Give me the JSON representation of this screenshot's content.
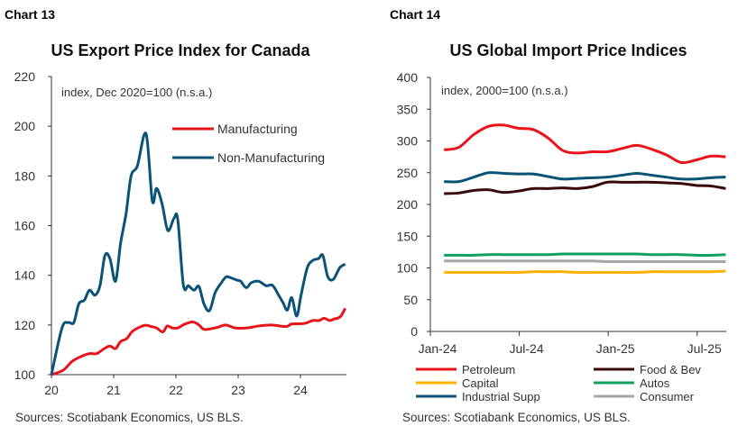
{
  "chart_data": [
    {
      "type": "line",
      "label": "Chart 13",
      "title": "US Export Price Index for Canada",
      "note": "index, Dec 2020=100 (n.s.a.)",
      "source": "Sources: Scotiabank Economics, US BLS.",
      "ylim": [
        100,
        220
      ],
      "yticks": [
        100,
        120,
        140,
        160,
        180,
        200,
        220
      ],
      "xlim": [
        20,
        24.8
      ],
      "xticks": [
        "20",
        "21",
        "22",
        "23",
        "24"
      ],
      "legend": "top-right",
      "grid": false,
      "series": [
        {
          "name": "Manufacturing",
          "color": "#e8141c",
          "x": [
            20,
            20.19,
            20.34,
            20.53,
            20.63,
            20.73,
            20.85,
            20.94,
            21.03,
            21.11,
            21.21,
            21.31,
            21.49,
            21.6,
            21.69,
            21.79,
            21.86,
            21.94,
            22.03,
            22.13,
            22.27,
            22.37,
            22.46,
            22.66,
            22.8,
            22.95,
            23.14,
            23.33,
            23.53,
            23.77,
            23.86,
            24.06,
            24.2,
            24.3,
            24.38,
            24.47,
            24.54,
            24.64,
            24.72
          ],
          "y": [
            100,
            101.8,
            105.5,
            107.9,
            108.5,
            108.5,
            110.5,
            111.5,
            110.5,
            113.3,
            114.5,
            117.6,
            119.8,
            119.4,
            118.8,
            117.2,
            119.6,
            118.8,
            118.8,
            120.2,
            121.2,
            120,
            118.2,
            119,
            120,
            118.8,
            118.8,
            119.6,
            120,
            119.4,
            120.4,
            120.6,
            121.8,
            121.8,
            122.7,
            121.8,
            122.4,
            123.3,
            126.7
          ]
        },
        {
          "name": "Non-Manufacturing",
          "color": "#0b5277",
          "x": [
            20,
            20.17,
            20.27,
            20.36,
            20.44,
            20.53,
            20.61,
            20.7,
            20.78,
            20.86,
            20.94,
            21.03,
            21.11,
            21.2,
            21.28,
            21.38,
            21.52,
            21.62,
            21.69,
            21.78,
            21.87,
            21.97,
            22.03,
            22.12,
            22.2,
            22.29,
            22.37,
            22.45,
            22.54,
            22.63,
            22.73,
            22.81,
            22.9,
            22.99,
            23.04,
            23.13,
            23.21,
            23.33,
            23.45,
            23.55,
            23.65,
            23.72,
            23.79,
            23.86,
            23.94,
            24.01,
            24.11,
            24.2,
            24.29,
            24.36,
            24.44,
            24.53,
            24.63,
            24.72
          ],
          "y": [
            100,
            118.8,
            121,
            121,
            128.5,
            130,
            134,
            132,
            135.8,
            148,
            146.7,
            137.6,
            152.7,
            165,
            180,
            184,
            197,
            170,
            175,
            168.5,
            158,
            163,
            162.4,
            136,
            135.8,
            134,
            135.5,
            128.5,
            125.8,
            133,
            137,
            139.4,
            138.8,
            138,
            137.6,
            135,
            137,
            137.6,
            135.8,
            136,
            132,
            129,
            126,
            131,
            123.6,
            132,
            143,
            146,
            146.7,
            148,
            139.4,
            138.4,
            143,
            144.5
          ]
        }
      ]
    },
    {
      "type": "line",
      "label": "Chart 14",
      "title": "US Global Import Price Indices",
      "note": "index, 2000=100 (n.s.a.)",
      "source": "Sources: Scotiabank Economics, US BLS.",
      "ylim": [
        0,
        400
      ],
      "yticks": [
        0,
        50,
        100,
        150,
        200,
        250,
        300,
        350,
        400
      ],
      "xticks": [
        "Jan-24",
        "Jul-24",
        "Jan-25",
        "Jul-25"
      ],
      "legend": "bottom",
      "x": [
        "2024-01",
        "2024-02",
        "2024-03",
        "2024-04",
        "2024-05",
        "2024-06",
        "2024-07",
        "2024-08",
        "2024-09",
        "2024-10",
        "2024-11",
        "2024-12",
        "2025-01",
        "2025-02",
        "2025-03",
        "2025-04",
        "2025-05",
        "2025-06",
        "2025-07",
        "2025-08"
      ],
      "series": [
        {
          "name": "Petroleum",
          "color": "#e8141c",
          "values": [
            286,
            290,
            310,
            323,
            325,
            320,
            318,
            305,
            285,
            281,
            283,
            283,
            288,
            293,
            287,
            278,
            266,
            270,
            276,
            275
          ]
        },
        {
          "name": "Food & Bev",
          "color": "#3a0a0a",
          "values": [
            217,
            218,
            222,
            223,
            219,
            221,
            225,
            225,
            226,
            225,
            228,
            235,
            235,
            235,
            235,
            234,
            233,
            230,
            229,
            225
          ]
        },
        {
          "name": "Capital",
          "color": "#ffb000",
          "values": [
            93,
            93,
            93,
            93,
            93,
            93,
            94,
            94,
            94,
            93,
            93,
            93,
            93,
            93,
            94,
            94,
            94,
            94,
            94,
            95
          ]
        },
        {
          "name": "Autos",
          "color": "#10a060",
          "values": [
            120,
            120,
            120,
            121,
            121,
            121,
            121,
            121,
            122,
            122,
            122,
            122,
            122,
            122,
            121,
            121,
            121,
            120,
            120,
            121
          ]
        },
        {
          "name": "Industrial Supp",
          "color": "#0b5277",
          "values": [
            236,
            236,
            243,
            250,
            249,
            248,
            248,
            244,
            240,
            241,
            242,
            243,
            246,
            249,
            246,
            243,
            240,
            240,
            242,
            243
          ]
        },
        {
          "name": "Consumer",
          "color": "#a6a6a6",
          "values": [
            111,
            111,
            111,
            111,
            111,
            111,
            111,
            111,
            111,
            111,
            111,
            110,
            110,
            110,
            110,
            110,
            110,
            110,
            110,
            110
          ]
        }
      ]
    }
  ]
}
